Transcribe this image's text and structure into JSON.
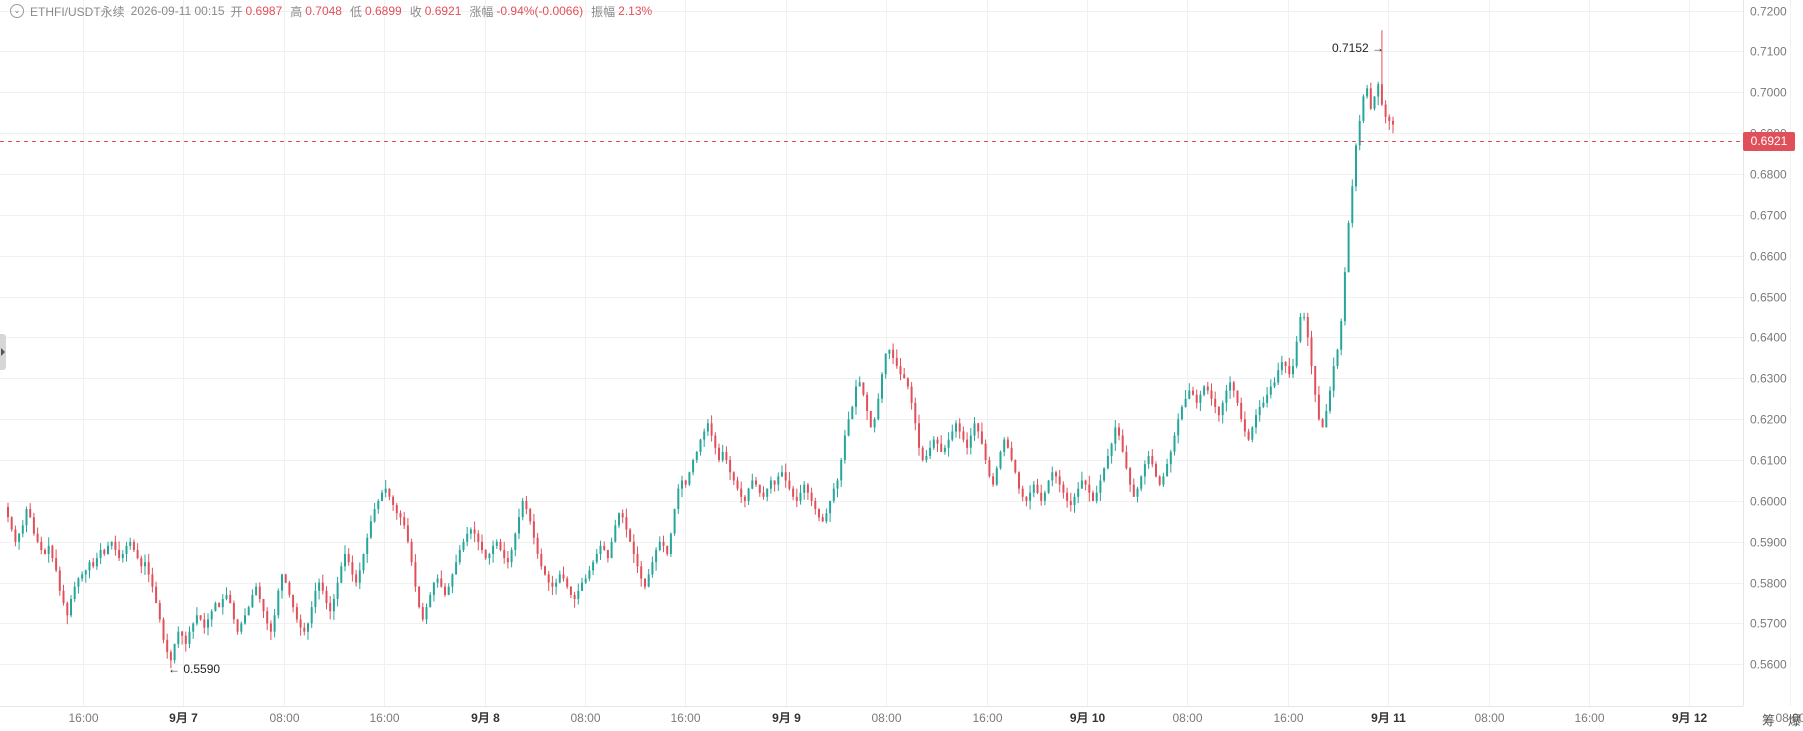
{
  "header": {
    "symbol": "ETHFI/USDT永续",
    "datetime": "2026-09-11 00:15",
    "open_label": "开",
    "open_value": "0.6987",
    "high_label": "高",
    "high_value": "0.7048",
    "low_label": "低",
    "low_value": "0.6899",
    "close_label": "收",
    "close_value": "0.6921",
    "change_label": "涨幅",
    "change_value": "-0.94%(-0.0066)",
    "amplitude_label": "振幅",
    "amplitude_value": "2.13%"
  },
  "current_price": "0.6921",
  "annotations": {
    "high_text": "0.7152 →",
    "low_text": "← 0.5590"
  },
  "corner_buttons": {
    "left": "筹",
    "right": "爆"
  },
  "colors": {
    "up": "#26a69a",
    "down": "#e1505a",
    "grid": "#f1f1f1",
    "axis_text": "#7a7a7a"
  },
  "chart_data": {
    "type": "candlestick",
    "y_ticks": [
      "0.5600",
      "0.5700",
      "0.5800",
      "0.5900",
      "0.6000",
      "0.6100",
      "0.6200",
      "0.6300",
      "0.6400",
      "0.6500",
      "0.6600",
      "0.6700",
      "0.6800",
      "0.6900",
      "0.7000",
      "0.7100",
      "0.7200"
    ],
    "ylim": [
      0.5498,
      0.7226
    ],
    "x_ticks": [
      "16:00",
      "9月 7",
      "08:00",
      "16:00",
      "9月 8",
      "08:00",
      "16:00",
      "9月 9",
      "08:00",
      "16:00",
      "9月 10",
      "08:00",
      "16:00",
      "9月 11",
      "08:00",
      "16:00",
      "9月 12",
      "08:00"
    ],
    "x_tick_bold": [
      false,
      true,
      false,
      false,
      true,
      false,
      false,
      true,
      false,
      false,
      true,
      false,
      false,
      true,
      false,
      false,
      true,
      false
    ],
    "high": 0.7152,
    "low": 0.559,
    "last_close": 0.6921,
    "series_closes": [
      0.596,
      0.593,
      0.59,
      0.592,
      0.594,
      0.598,
      0.596,
      0.592,
      0.59,
      0.588,
      0.587,
      0.589,
      0.586,
      0.583,
      0.578,
      0.575,
      0.572,
      0.576,
      0.579,
      0.581,
      0.582,
      0.583,
      0.585,
      0.584,
      0.586,
      0.588,
      0.587,
      0.589,
      0.59,
      0.588,
      0.586,
      0.587,
      0.589,
      0.59,
      0.588,
      0.586,
      0.584,
      0.585,
      0.582,
      0.579,
      0.575,
      0.571,
      0.566,
      0.563,
      0.561,
      0.565,
      0.568,
      0.567,
      0.565,
      0.568,
      0.57,
      0.572,
      0.571,
      0.569,
      0.571,
      0.573,
      0.575,
      0.574,
      0.576,
      0.577,
      0.575,
      0.571,
      0.568,
      0.57,
      0.572,
      0.574,
      0.577,
      0.579,
      0.576,
      0.573,
      0.57,
      0.568,
      0.572,
      0.578,
      0.582,
      0.58,
      0.577,
      0.574,
      0.571,
      0.569,
      0.568,
      0.57,
      0.574,
      0.578,
      0.58,
      0.578,
      0.575,
      0.573,
      0.576,
      0.58,
      0.584,
      0.587,
      0.585,
      0.582,
      0.58,
      0.583,
      0.587,
      0.591,
      0.595,
      0.598,
      0.6,
      0.602,
      0.603,
      0.601,
      0.599,
      0.597,
      0.596,
      0.594,
      0.59,
      0.585,
      0.579,
      0.574,
      0.571,
      0.574,
      0.577,
      0.58,
      0.581,
      0.579,
      0.577,
      0.579,
      0.582,
      0.585,
      0.588,
      0.59,
      0.592,
      0.593,
      0.592,
      0.59,
      0.588,
      0.586,
      0.587,
      0.589,
      0.59,
      0.588,
      0.586,
      0.585,
      0.588,
      0.592,
      0.596,
      0.6,
      0.598,
      0.595,
      0.591,
      0.587,
      0.584,
      0.582,
      0.58,
      0.579,
      0.58,
      0.582,
      0.581,
      0.579,
      0.577,
      0.576,
      0.578,
      0.58,
      0.581,
      0.583,
      0.585,
      0.587,
      0.589,
      0.588,
      0.586,
      0.59,
      0.594,
      0.597,
      0.596,
      0.593,
      0.59,
      0.587,
      0.584,
      0.581,
      0.579,
      0.582,
      0.585,
      0.588,
      0.59,
      0.589,
      0.587,
      0.592,
      0.598,
      0.603,
      0.605,
      0.604,
      0.607,
      0.61,
      0.612,
      0.615,
      0.617,
      0.619,
      0.616,
      0.613,
      0.61,
      0.612,
      0.61,
      0.607,
      0.605,
      0.603,
      0.601,
      0.6,
      0.603,
      0.605,
      0.604,
      0.602,
      0.601,
      0.603,
      0.605,
      0.604,
      0.606,
      0.607,
      0.605,
      0.603,
      0.601,
      0.6,
      0.602,
      0.604,
      0.602,
      0.6,
      0.598,
      0.596,
      0.595,
      0.597,
      0.6,
      0.603,
      0.605,
      0.61,
      0.616,
      0.62,
      0.623,
      0.628,
      0.629,
      0.626,
      0.622,
      0.618,
      0.62,
      0.625,
      0.631,
      0.636,
      0.637,
      0.635,
      0.633,
      0.631,
      0.63,
      0.628,
      0.624,
      0.619,
      0.613,
      0.61,
      0.611,
      0.613,
      0.615,
      0.614,
      0.612,
      0.613,
      0.615,
      0.617,
      0.619,
      0.617,
      0.615,
      0.613,
      0.616,
      0.619,
      0.617,
      0.614,
      0.61,
      0.606,
      0.604,
      0.608,
      0.612,
      0.615,
      0.613,
      0.61,
      0.607,
      0.603,
      0.601,
      0.6,
      0.602,
      0.604,
      0.602,
      0.6,
      0.602,
      0.605,
      0.607,
      0.606,
      0.604,
      0.602,
      0.6,
      0.599,
      0.601,
      0.603,
      0.605,
      0.604,
      0.602,
      0.6,
      0.602,
      0.605,
      0.608,
      0.611,
      0.614,
      0.618,
      0.616,
      0.612,
      0.608,
      0.604,
      0.601,
      0.603,
      0.606,
      0.609,
      0.611,
      0.609,
      0.606,
      0.604,
      0.606,
      0.609,
      0.612,
      0.616,
      0.62,
      0.623,
      0.625,
      0.627,
      0.626,
      0.624,
      0.626,
      0.628,
      0.627,
      0.625,
      0.623,
      0.621,
      0.624,
      0.627,
      0.629,
      0.627,
      0.624,
      0.62,
      0.617,
      0.615,
      0.618,
      0.621,
      0.623,
      0.624,
      0.626,
      0.628,
      0.629,
      0.632,
      0.634,
      0.633,
      0.631,
      0.633,
      0.639,
      0.645,
      0.645,
      0.64,
      0.633,
      0.626,
      0.62,
      0.618,
      0.622,
      0.627,
      0.633,
      0.637,
      0.644,
      0.656,
      0.668,
      0.677,
      0.687,
      0.693,
      0.699,
      0.701,
      0.696,
      0.699,
      0.702,
      0.697,
      0.694,
      0.693,
      0.6921
    ]
  }
}
